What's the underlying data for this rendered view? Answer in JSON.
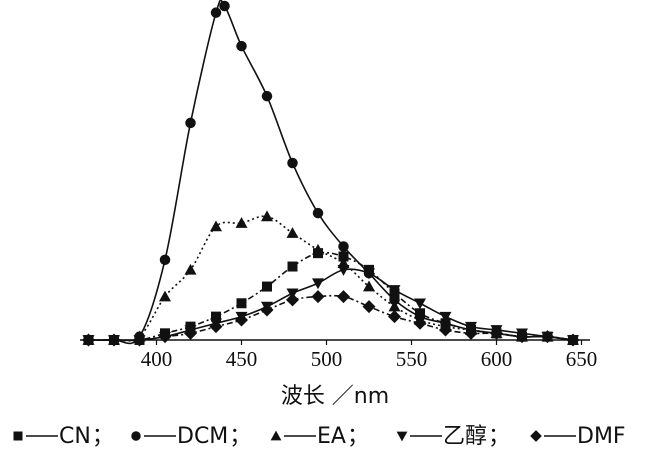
{
  "chart_data": {
    "type": "line",
    "title": "",
    "xlabel": "波长 ／nm",
    "ylabel": "",
    "xlim": [
      355,
      655
    ],
    "ylim": [
      0,
      1.0
    ],
    "xticks": [
      400,
      450,
      500,
      550,
      600,
      650
    ],
    "grid": false,
    "legend_position": "bottom",
    "series": [
      {
        "name": "CN",
        "marker": "square",
        "line_style": "dash-dot",
        "x": [
          360,
          375,
          390,
          405,
          420,
          435,
          450,
          465,
          480,
          495,
          510,
          525,
          540,
          555,
          570,
          585,
          600,
          615,
          630,
          645
        ],
        "y": [
          0.0,
          0.0,
          0.0,
          0.02,
          0.04,
          0.07,
          0.11,
          0.16,
          0.22,
          0.26,
          0.25,
          0.21,
          0.14,
          0.08,
          0.05,
          0.03,
          0.02,
          0.01,
          0.01,
          0.0
        ]
      },
      {
        "name": "DCM",
        "marker": "circle",
        "line_style": "solid",
        "x": [
          360,
          375,
          390,
          405,
          420,
          435,
          440,
          450,
          465,
          480,
          495,
          510,
          525,
          540,
          555,
          570,
          585,
          600,
          615,
          630,
          645
        ],
        "y": [
          0.0,
          0.0,
          0.01,
          0.24,
          0.65,
          0.98,
          1.0,
          0.88,
          0.73,
          0.53,
          0.38,
          0.28,
          0.2,
          0.12,
          0.07,
          0.05,
          0.03,
          0.02,
          0.01,
          0.01,
          0.0
        ]
      },
      {
        "name": "EA",
        "marker": "triangle-up",
        "line_style": "dotted",
        "x": [
          360,
          375,
          390,
          405,
          420,
          435,
          450,
          465,
          480,
          495,
          510,
          525,
          540,
          555,
          570,
          585,
          600,
          615,
          630,
          645
        ],
        "y": [
          0.0,
          0.0,
          0.01,
          0.13,
          0.21,
          0.34,
          0.35,
          0.37,
          0.32,
          0.27,
          0.23,
          0.16,
          0.1,
          0.06,
          0.04,
          0.03,
          0.02,
          0.01,
          0.01,
          0.0
        ]
      },
      {
        "name": "乙醇",
        "marker": "triangle-down",
        "line_style": "solid",
        "x": [
          360,
          375,
          390,
          405,
          420,
          435,
          450,
          465,
          480,
          495,
          510,
          525,
          540,
          555,
          570,
          585,
          600,
          615,
          630,
          645
        ],
        "y": [
          0.0,
          0.0,
          0.0,
          0.01,
          0.03,
          0.05,
          0.07,
          0.1,
          0.14,
          0.17,
          0.21,
          0.2,
          0.15,
          0.11,
          0.07,
          0.04,
          0.03,
          0.02,
          0.01,
          0.0
        ]
      },
      {
        "name": "DMF",
        "marker": "diamond",
        "line_style": "dash-dot",
        "x": [
          360,
          375,
          390,
          405,
          420,
          435,
          450,
          465,
          480,
          495,
          510,
          525,
          540,
          555,
          570,
          585,
          600,
          615,
          630,
          645
        ],
        "y": [
          0.0,
          0.0,
          0.0,
          0.01,
          0.02,
          0.04,
          0.06,
          0.09,
          0.12,
          0.13,
          0.13,
          0.1,
          0.07,
          0.05,
          0.03,
          0.02,
          0.02,
          0.01,
          0.01,
          0.0
        ]
      }
    ]
  },
  "legend": {
    "items": [
      {
        "marker": "square",
        "label": "CN",
        "sep": "；"
      },
      {
        "marker": "circle",
        "label": "DCM",
        "sep": "；"
      },
      {
        "marker": "triangle-up",
        "label": "EA",
        "sep": "；"
      },
      {
        "marker": "triangle-down",
        "label": "乙醇",
        "sep": "；"
      },
      {
        "marker": "diamond",
        "label": "DMF",
        "sep": ""
      }
    ]
  }
}
